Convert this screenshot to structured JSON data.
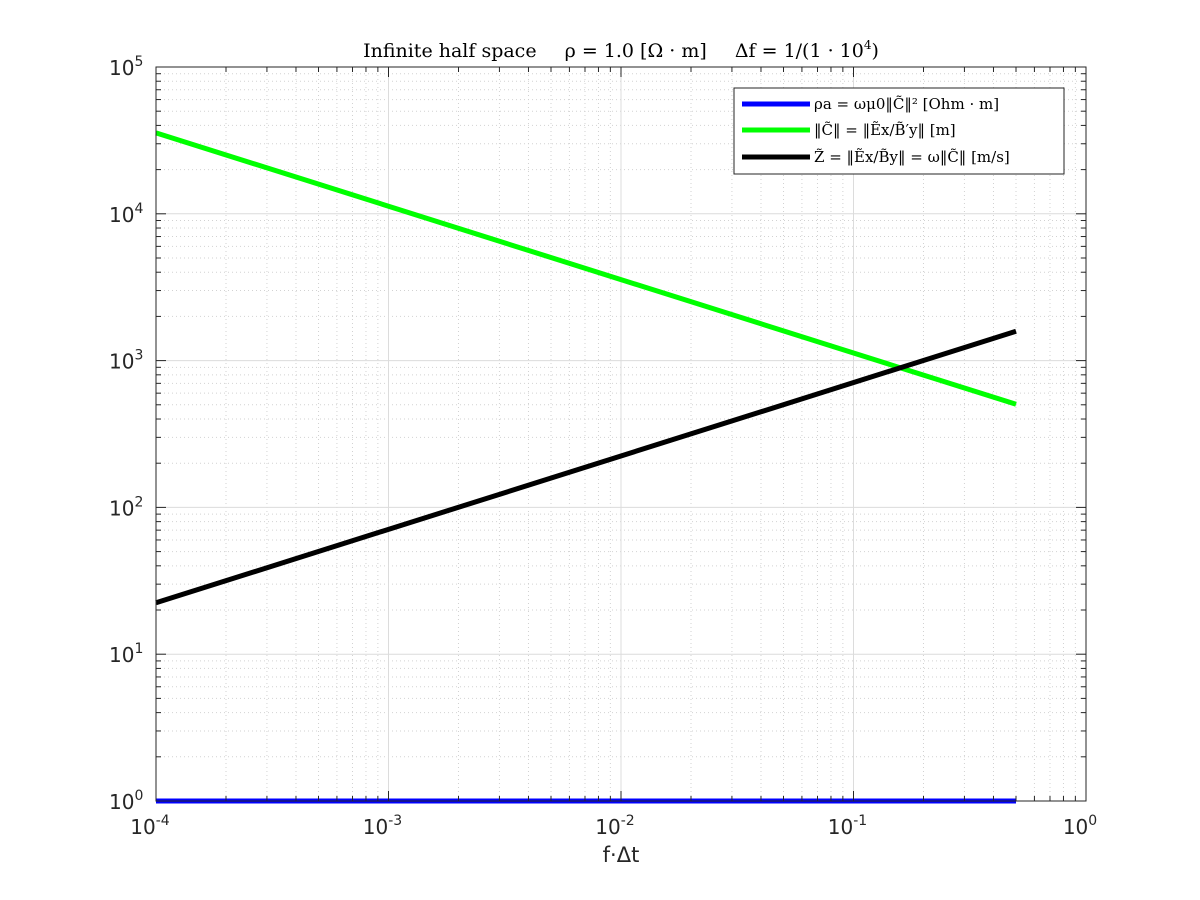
{
  "chart_data": {
    "type": "line",
    "scale": {
      "x": "log",
      "y": "log"
    },
    "title": {
      "prefix": "Infinite half space",
      "rho_label": "ρ = 1.0 [Ω · m]",
      "df_base": "Δf = 1/(1 · 10",
      "df_exp": "4",
      "df_close": ")"
    },
    "xlabel": "f·Δt",
    "ylabel": "",
    "xlim": [
      0.0001,
      1
    ],
    "ylim": [
      1,
      100000
    ],
    "grid": true,
    "minor_grid": true,
    "legend_position": "top-right",
    "x_ticks": [
      {
        "base": "10",
        "exp": "-4",
        "value": 0.0001
      },
      {
        "base": "10",
        "exp": "-3",
        "value": 0.001
      },
      {
        "base": "10",
        "exp": "-2",
        "value": 0.01
      },
      {
        "base": "10",
        "exp": "-1",
        "value": 0.1
      },
      {
        "base": "10",
        "exp": "0",
        "value": 1
      }
    ],
    "y_ticks": [
      {
        "base": "10",
        "exp": "0",
        "value": 1
      },
      {
        "base": "10",
        "exp": "1",
        "value": 10
      },
      {
        "base": "10",
        "exp": "2",
        "value": 100
      },
      {
        "base": "10",
        "exp": "3",
        "value": 1000
      },
      {
        "base": "10",
        "exp": "4",
        "value": 10000
      },
      {
        "base": "10",
        "exp": "5",
        "value": 100000
      }
    ],
    "series": [
      {
        "name": "ρa = ωμ0‖C̃‖²   [Ohm · m]",
        "color": "#0000ff",
        "x": [
          0.0001,
          0.5
        ],
        "y": [
          1,
          1
        ]
      },
      {
        "name": "‖C̃‖ = ‖Ẽx/B̃′y‖   [m]",
        "color": "#00ff00",
        "x": [
          0.0001,
          0.5
        ],
        "y": [
          35600,
          504
        ]
      },
      {
        "name": "Z̃ = ‖Ẽx/B̃y‖ = ω‖C̃‖   [m/s]",
        "color": "#000000",
        "x": [
          0.0001,
          0.5
        ],
        "y": [
          22.4,
          1585
        ]
      }
    ]
  }
}
